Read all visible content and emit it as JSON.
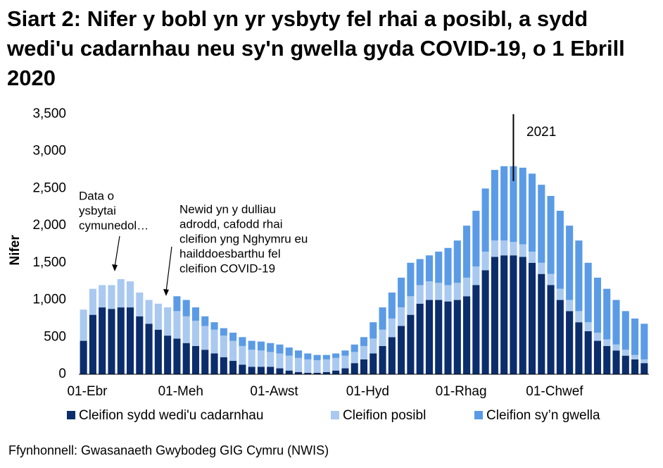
{
  "chart_data": {
    "type": "stacked_bar",
    "title": "Siart 2: Nifer y bobl yn yr ysbyty fel rhai a posibl, a sydd wedi'u cadarnhau neu sy'n gwella gyda COVID-19, o 1 Ebrill 2020",
    "y_label": "Nifer",
    "source": "Ffynhonnell: Gwasanaeth Gwybodeg GIG Cymru (NWIS)",
    "year_marker": "2021",
    "annotations": [
      {
        "lines": [
          "Data o",
          "ysbytai",
          "cymunedol…"
        ]
      },
      {
        "lines": [
          "Newid yn y dulliau",
          "adrodd, cafodd rhai",
          "cleifion yng Nghymru eu",
          "hailddoesbarthu fel",
          "cleifion COVID-19"
        ]
      }
    ],
    "categories": [
      "01-Ebr",
      null,
      null,
      null,
      null,
      null,
      null,
      null,
      null,
      null,
      "01-Meh",
      null,
      null,
      null,
      null,
      null,
      null,
      null,
      null,
      null,
      "01-Awst",
      null,
      null,
      null,
      null,
      null,
      null,
      null,
      null,
      null,
      "01-Hyd",
      null,
      null,
      null,
      null,
      null,
      null,
      null,
      null,
      null,
      "01-Rhag",
      null,
      null,
      null,
      null,
      null,
      null,
      null,
      null,
      null,
      "01-Chwef",
      null,
      null,
      null,
      null,
      null,
      null,
      null,
      null,
      null,
      null
    ],
    "series": [
      {
        "name": "Cleifion sydd wedi'u cadarnhau",
        "color": "#0b2d6b",
        "values": [
          450,
          800,
          900,
          880,
          900,
          900,
          780,
          680,
          600,
          520,
          480,
          420,
          380,
          330,
          280,
          230,
          180,
          130,
          100,
          100,
          100,
          80,
          50,
          30,
          20,
          20,
          30,
          50,
          80,
          150,
          200,
          280,
          380,
          500,
          650,
          800,
          950,
          1000,
          1000,
          980,
          1000,
          1050,
          1200,
          1400,
          1580,
          1600,
          1600,
          1580,
          1500,
          1350,
          1200,
          1000,
          850,
          700,
          580,
          450,
          380,
          320,
          250,
          200,
          150
        ]
      },
      {
        "name": "Cleifion posibl",
        "color": "#a9c9f0",
        "values": [
          420,
          350,
          300,
          320,
          380,
          350,
          320,
          320,
          350,
          380,
          370,
          360,
          340,
          320,
          320,
          290,
          270,
          250,
          230,
          220,
          200,
          200,
          200,
          190,
          180,
          170,
          170,
          170,
          170,
          150,
          180,
          200,
          220,
          250,
          250,
          250,
          250,
          250,
          230,
          220,
          230,
          250,
          250,
          250,
          220,
          200,
          180,
          170,
          150,
          150,
          150,
          150,
          150,
          150,
          120,
          110,
          90,
          80,
          80,
          60,
          50
        ]
      },
      {
        "name": "Cleifion sy’n gwella",
        "color": "#5b9be6",
        "values": [
          0,
          0,
          0,
          0,
          0,
          0,
          0,
          0,
          0,
          0,
          200,
          220,
          180,
          130,
          100,
          100,
          110,
          120,
          120,
          120,
          120,
          120,
          110,
          100,
          80,
          70,
          60,
          60,
          70,
          100,
          120,
          220,
          300,
          350,
          400,
          450,
          350,
          350,
          420,
          500,
          570,
          700,
          750,
          850,
          950,
          1000,
          1020,
          1030,
          1050,
          1050,
          1050,
          1050,
          1000,
          950,
          800,
          740,
          680,
          600,
          520,
          490,
          480
        ]
      }
    ],
    "ylim": [
      0,
      3500
    ],
    "yticks": [
      0,
      500,
      {
        "value": 1000,
        "label": "1,000"
      },
      {
        "value": 1500,
        "label": "1,500"
      },
      {
        "value": 2000,
        "label": "2,000"
      },
      {
        "value": 2500,
        "label": "2,500"
      },
      {
        "value": 3000,
        "label": "3,000"
      },
      {
        "value": 3500,
        "label": "3,500"
      }
    ],
    "grid": false,
    "legend": "bottom"
  }
}
